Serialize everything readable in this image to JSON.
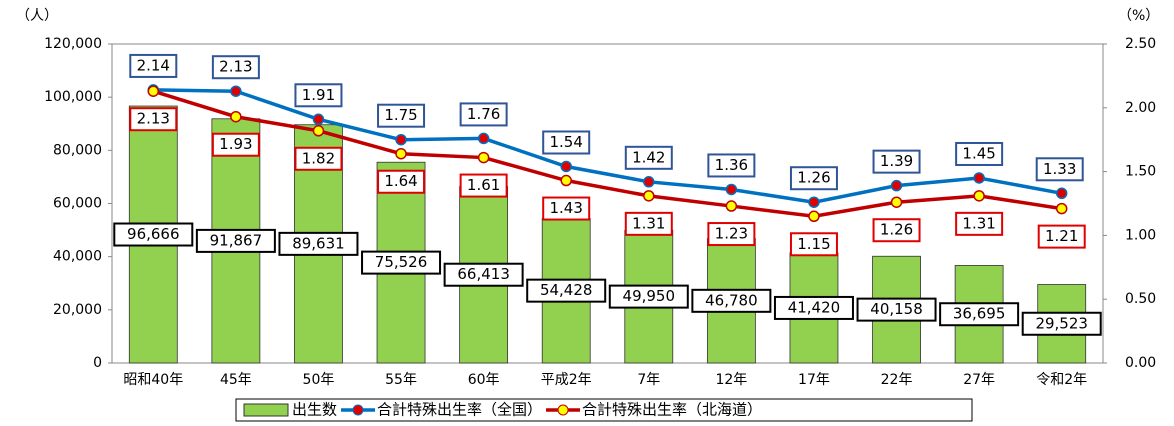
{
  "chart_data": {
    "type": "bar-line",
    "y_unit_label": "（人）",
    "y2_unit_label": "（%）",
    "categories": [
      "昭和40年",
      "45年",
      "50年",
      "55年",
      "60年",
      "平成2年",
      "7年",
      "12年",
      "17年",
      "22年",
      "27年",
      "令和2年"
    ],
    "series": [
      {
        "name": "出生数",
        "type": "bar",
        "color": "#92d050",
        "values": [
          96666,
          91867,
          89631,
          75526,
          66413,
          54428,
          49950,
          46780,
          41420,
          40158,
          36695,
          29523
        ],
        "value_labels": [
          "96,666",
          "91,867",
          "89,631",
          "75,526",
          "66,413",
          "54,428",
          "49,950",
          "46,780",
          "41,420",
          "40,158",
          "36,695",
          "29,523"
        ]
      },
      {
        "name": "合計特殊出生率（全国）",
        "type": "line",
        "axis": "y2",
        "color": "#0070c0",
        "marker_color": "#e00000",
        "values": [
          2.14,
          2.13,
          1.91,
          1.75,
          1.76,
          1.54,
          1.42,
          1.36,
          1.26,
          1.39,
          1.45,
          1.33
        ]
      },
      {
        "name": "合計特殊出生率（北海道）",
        "type": "line",
        "axis": "y2",
        "color": "#c00000",
        "marker_color": "#ffff00",
        "values": [
          2.13,
          1.93,
          1.82,
          1.64,
          1.61,
          1.43,
          1.31,
          1.23,
          1.15,
          1.26,
          1.31,
          1.21
        ]
      }
    ],
    "ylim": [
      0,
      120000
    ],
    "yticks": [
      0,
      {
        "value": 20000,
        "label": "20,000"
      },
      {
        "value": 40000,
        "label": "40,000"
      },
      {
        "value": 60000,
        "label": "60,000"
      },
      {
        "value": 80000,
        "label": "80,000"
      },
      {
        "value": 100000,
        "label": "100,000"
      },
      {
        "value": 120000,
        "label": "120,000"
      }
    ],
    "y2lim": [
      0,
      2.5
    ],
    "y2ticks": [
      {
        "value": 0,
        "label": "0.00"
      },
      {
        "value": 0.5,
        "label": "0.50"
      },
      {
        "value": 1,
        "label": "1.00"
      },
      {
        "value": 1.5,
        "label": "1.50"
      },
      {
        "value": 2,
        "label": "2.00"
      },
      {
        "value": 2.5,
        "label": "2.50"
      }
    ]
  }
}
